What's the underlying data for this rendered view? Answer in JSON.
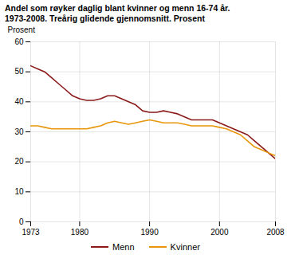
{
  "chart_data": {
    "type": "line",
    "title": "Andel som røyker daglig blant kvinner og menn 16-74 år.",
    "subtitle": "1973-2008. Treårig glidende gjennomsnitt. Prosent",
    "y_label": "Prosent",
    "x": [
      1973,
      1974,
      1975,
      1976,
      1977,
      1978,
      1979,
      1980,
      1981,
      1982,
      1983,
      1984,
      1985,
      1986,
      1987,
      1988,
      1989,
      1990,
      1991,
      1992,
      1993,
      1994,
      1995,
      1996,
      1997,
      1998,
      1999,
      2000,
      2001,
      2002,
      2003,
      2004,
      2005,
      2006,
      2007,
      2008
    ],
    "series": [
      {
        "name": "Menn",
        "color": "#8B1A1A",
        "values": [
          52,
          51,
          50,
          48,
          46,
          44,
          42,
          41,
          40.5,
          40.5,
          41,
          42,
          42,
          41,
          40,
          39,
          37,
          36.5,
          36.5,
          37,
          36.5,
          36,
          35,
          34,
          34,
          34,
          34,
          33,
          32,
          31,
          30,
          29,
          27,
          25,
          23,
          21
        ]
      },
      {
        "name": "Kvinner",
        "color": "#E8960A",
        "values": [
          32,
          32,
          31.5,
          31,
          31,
          31,
          31,
          31,
          31,
          31.5,
          32,
          33,
          33.5,
          33,
          32.5,
          33,
          33.5,
          34,
          33.5,
          33,
          33,
          33,
          32.5,
          32,
          32,
          32,
          32,
          31.5,
          31,
          30,
          29,
          27,
          25,
          24,
          23,
          22
        ]
      }
    ],
    "xlim": [
      1973,
      2008
    ],
    "ylim": [
      0,
      60
    ],
    "xticks": [
      1973,
      1980,
      1990,
      2000,
      2008
    ],
    "yticks": [
      0,
      10,
      20,
      30,
      40,
      50,
      60
    ],
    "grid": true,
    "legend": "bottom"
  }
}
